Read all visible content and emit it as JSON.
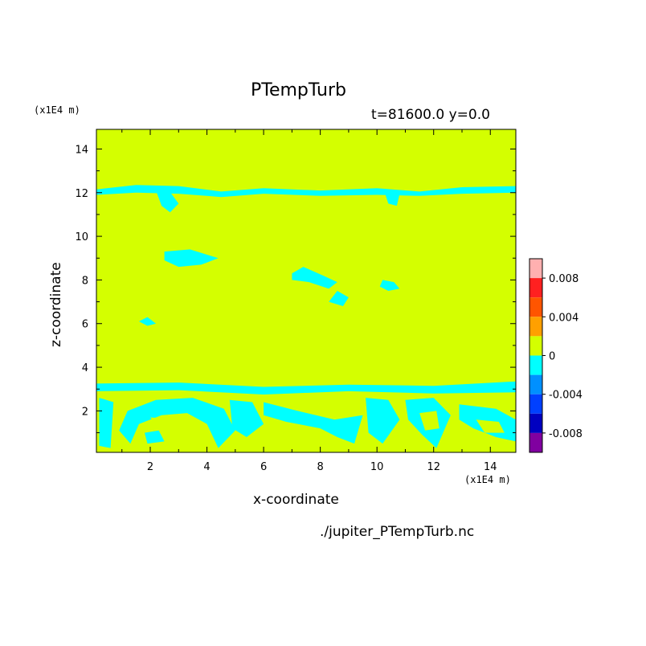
{
  "chart_data": {
    "type": "heatmap",
    "title": "PTempTurb",
    "subtitle": "t=81600.0 y=0.0",
    "xlabel": "x-coordinate",
    "ylabel": "z-coordinate",
    "x_unit": "(x1E4 m)",
    "y_unit": "(x1E4 m)",
    "xlim": [
      0.1,
      14.9
    ],
    "ylim": [
      0.1,
      14.9
    ],
    "x_ticks": [
      2,
      4,
      6,
      8,
      10,
      12,
      14
    ],
    "y_ticks": [
      2,
      4,
      6,
      8,
      10,
      12,
      14
    ],
    "background_level": "0",
    "background_color": "#d4ff00",
    "anomaly_color": "#00ffff",
    "colorbar": {
      "levels": [
        {
          "color": "#ffb0b0"
        },
        {
          "color": "#ff2020"
        },
        {
          "color": "#ff5500"
        },
        {
          "color": "#ffa000"
        },
        {
          "color": "#d4ff00"
        },
        {
          "color": "#00ffff"
        },
        {
          "color": "#0090ff"
        },
        {
          "color": "#0040ff"
        },
        {
          "color": "#0000c0"
        },
        {
          "color": "#8000a0"
        }
      ],
      "tick_labels": [
        "0.008",
        "0.004",
        "0",
        "-0.004",
        "-0.008"
      ]
    },
    "negative_regions": [
      {
        "name": "upper-band",
        "points": [
          [
            0.1,
            12.15
          ],
          [
            1.5,
            12.35
          ],
          [
            3,
            12.3
          ],
          [
            4.5,
            12.05
          ],
          [
            6,
            12.2
          ],
          [
            8,
            12.1
          ],
          [
            10,
            12.2
          ],
          [
            11.5,
            12.05
          ],
          [
            13,
            12.25
          ],
          [
            14.9,
            12.3
          ],
          [
            14.9,
            12.0
          ],
          [
            13,
            11.95
          ],
          [
            11.5,
            11.85
          ],
          [
            10,
            11.9
          ],
          [
            8,
            11.85
          ],
          [
            6,
            11.95
          ],
          [
            4.5,
            11.8
          ],
          [
            3,
            11.95
          ],
          [
            1.5,
            12.0
          ],
          [
            0.1,
            11.9
          ]
        ]
      },
      {
        "name": "upper-blob-1",
        "points": [
          [
            2.2,
            12.1
          ],
          [
            2.6,
            12.2
          ],
          [
            3,
            11.5
          ],
          [
            2.7,
            11.1
          ],
          [
            2.4,
            11.4
          ]
        ]
      },
      {
        "name": "upper-blob-2",
        "points": [
          [
            10.3,
            11.9
          ],
          [
            10.8,
            11.95
          ],
          [
            10.7,
            11.4
          ],
          [
            10.4,
            11.5
          ]
        ]
      },
      {
        "name": "blob-9",
        "points": [
          [
            2.5,
            9.3
          ],
          [
            3.4,
            9.4
          ],
          [
            4.4,
            9.0
          ],
          [
            3.8,
            8.7
          ],
          [
            3.0,
            8.6
          ],
          [
            2.5,
            8.9
          ]
        ]
      },
      {
        "name": "blob-8a",
        "points": [
          [
            7.0,
            8.3
          ],
          [
            7.4,
            8.6
          ],
          [
            8.1,
            8.2
          ],
          [
            8.6,
            7.9
          ],
          [
            8.3,
            7.6
          ],
          [
            7.6,
            7.9
          ],
          [
            7.0,
            8.0
          ]
        ]
      },
      {
        "name": "blob-8b",
        "points": [
          [
            8.6,
            7.5
          ],
          [
            9.0,
            7.2
          ],
          [
            8.8,
            6.8
          ],
          [
            8.3,
            7.0
          ]
        ]
      },
      {
        "name": "blob-10.5",
        "points": [
          [
            10.2,
            8.0
          ],
          [
            10.6,
            7.9
          ],
          [
            10.8,
            7.6
          ],
          [
            10.4,
            7.5
          ],
          [
            10.1,
            7.7
          ]
        ]
      },
      {
        "name": "blob-6",
        "points": [
          [
            1.6,
            6.1
          ],
          [
            1.9,
            6.3
          ],
          [
            2.2,
            6.0
          ],
          [
            1.9,
            5.9
          ]
        ]
      },
      {
        "name": "lower-band",
        "points": [
          [
            0.1,
            3.25
          ],
          [
            3,
            3.3
          ],
          [
            6,
            3.1
          ],
          [
            9,
            3.2
          ],
          [
            12,
            3.15
          ],
          [
            14.9,
            3.35
          ],
          [
            14.9,
            2.85
          ],
          [
            12,
            2.8
          ],
          [
            9,
            2.9
          ],
          [
            6,
            2.75
          ],
          [
            3,
            2.95
          ],
          [
            0.1,
            2.9
          ]
        ]
      },
      {
        "name": "arch-1",
        "points": [
          [
            1.2,
            2.0
          ],
          [
            2.2,
            2.5
          ],
          [
            3.5,
            2.6
          ],
          [
            4.6,
            2.1
          ],
          [
            5.0,
            1.1
          ],
          [
            4.4,
            0.3
          ],
          [
            4.0,
            1.4
          ],
          [
            3.3,
            1.9
          ],
          [
            2.4,
            1.8
          ],
          [
            1.6,
            1.4
          ],
          [
            1.3,
            0.5
          ],
          [
            0.9,
            1.1
          ]
        ]
      },
      {
        "name": "arch-2",
        "points": [
          [
            0.2,
            2.6
          ],
          [
            0.7,
            2.4
          ],
          [
            0.6,
            0.3
          ],
          [
            0.2,
            0.4
          ]
        ]
      },
      {
        "name": "swirl-3",
        "points": [
          [
            4.8,
            2.5
          ],
          [
            5.6,
            2.4
          ],
          [
            6.0,
            1.4
          ],
          [
            5.4,
            0.8
          ],
          [
            4.9,
            1.2
          ]
        ]
      },
      {
        "name": "swirl-4",
        "points": [
          [
            6.0,
            2.4
          ],
          [
            7.2,
            2.0
          ],
          [
            8.5,
            1.6
          ],
          [
            9.5,
            1.8
          ],
          [
            9.2,
            0.5
          ],
          [
            8.6,
            0.8
          ],
          [
            8.0,
            1.2
          ],
          [
            6.8,
            1.5
          ],
          [
            6.0,
            1.8
          ]
        ]
      },
      {
        "name": "swirl-5",
        "points": [
          [
            9.6,
            2.6
          ],
          [
            10.4,
            2.5
          ],
          [
            10.8,
            1.6
          ],
          [
            10.2,
            0.5
          ],
          [
            9.7,
            1.0
          ]
        ]
      },
      {
        "name": "swirl-6",
        "points": [
          [
            11.0,
            2.5
          ],
          [
            12.0,
            2.6
          ],
          [
            12.6,
            1.8
          ],
          [
            12.1,
            0.3
          ],
          [
            11.6,
            0.9
          ],
          [
            11.1,
            1.6
          ]
        ]
      },
      {
        "name": "swirl-7",
        "points": [
          [
            12.9,
            2.3
          ],
          [
            14.2,
            2.1
          ],
          [
            14.9,
            1.6
          ],
          [
            14.9,
            0.6
          ],
          [
            14.2,
            0.8
          ],
          [
            13.4,
            1.2
          ],
          [
            12.9,
            1.6
          ]
        ]
      },
      {
        "name": "small-8",
        "points": [
          [
            1.8,
            1.0
          ],
          [
            2.3,
            1.1
          ],
          [
            2.5,
            0.6
          ],
          [
            1.9,
            0.5
          ]
        ]
      }
    ],
    "positive_regions": [
      {
        "name": "inner-arch-1",
        "points": [
          [
            2.0,
            1.7
          ],
          [
            3.0,
            1.6
          ],
          [
            3.6,
            1.2
          ],
          [
            3.1,
            0.9
          ],
          [
            2.4,
            1.1
          ]
        ]
      },
      {
        "name": "inner-swirl-4",
        "points": [
          [
            7.2,
            1.3
          ],
          [
            8.1,
            1.0
          ],
          [
            8.4,
            0.6
          ],
          [
            7.6,
            0.5
          ],
          [
            7.0,
            0.9
          ]
        ]
      },
      {
        "name": "inner-swirl-6",
        "points": [
          [
            11.5,
            1.9
          ],
          [
            12.1,
            2.0
          ],
          [
            12.2,
            1.2
          ],
          [
            11.7,
            1.1
          ]
        ]
      },
      {
        "name": "inner-swirl-7",
        "points": [
          [
            13.5,
            1.6
          ],
          [
            14.3,
            1.5
          ],
          [
            14.5,
            1.0
          ],
          [
            13.8,
            1.0
          ]
        ]
      }
    ]
  },
  "labels": {
    "title": "PTempTurb",
    "subtitle": "t=81600.0 y=0.0",
    "xlabel": "x-coordinate",
    "ylabel": "z-coordinate",
    "x_unit": "(x1E4 m)",
    "y_unit": "(x1E4 m)",
    "filename": "./jupiter_PTempTurb.nc"
  }
}
